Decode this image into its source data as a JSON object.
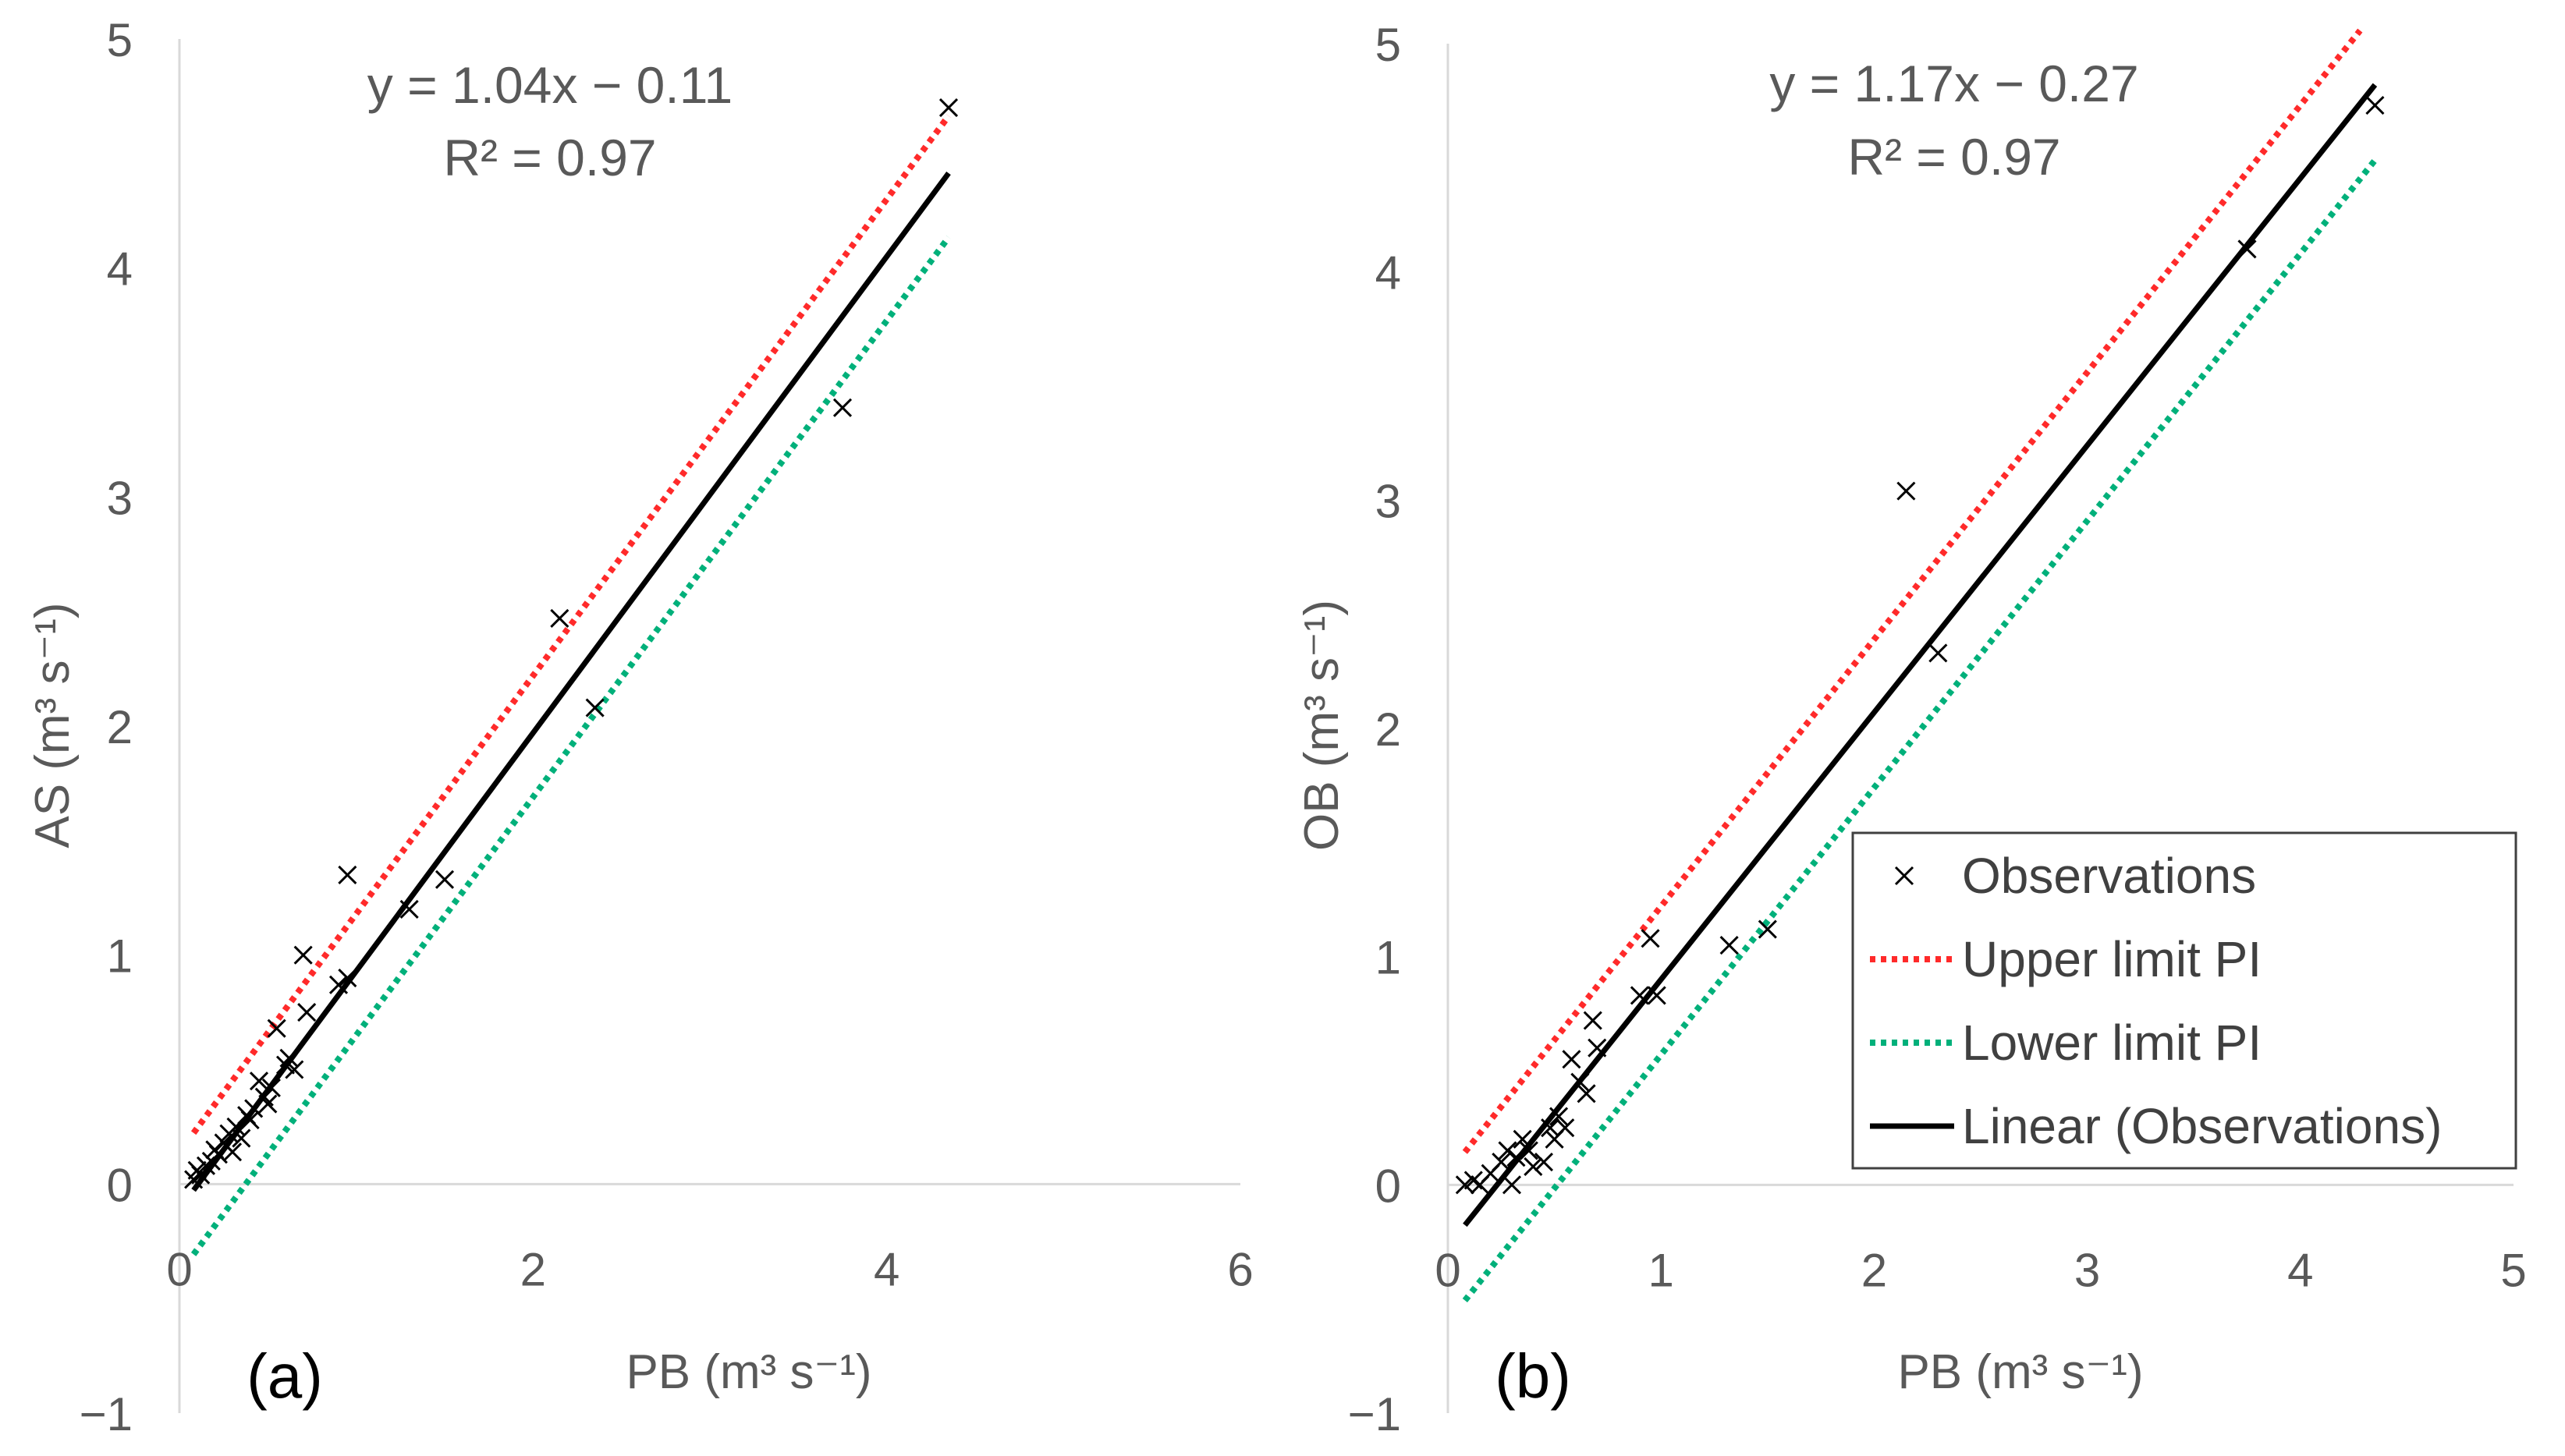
{
  "colors": {
    "observation": "#000000",
    "upper": "#ff2a2a",
    "lower": "#00b07a",
    "fit": "#000000",
    "axis": "#d9d9d9",
    "text": "#595959",
    "panel_label": "#000000"
  },
  "chart_data": [
    {
      "type": "scatter",
      "panel_label": "(a)",
      "xlabel": "PB (m³ s⁻¹)",
      "ylabel": "AS (m³ s⁻¹)",
      "xlim": [
        0,
        6
      ],
      "ylim": [
        -1,
        5
      ],
      "xticks": [
        "0",
        "2",
        "4",
        "6"
      ],
      "xtick_values": [
        0,
        2,
        4,
        6
      ],
      "yticks": [
        "−1",
        "0",
        "1",
        "2",
        "3",
        "4",
        "5"
      ],
      "ytick_values": [
        -1,
        0,
        1,
        2,
        3,
        4,
        5
      ],
      "equation": "y = 1.04x − 0.11",
      "r2": "R² = 0.97",
      "fit": {
        "slope": 1.04,
        "intercept": -0.11,
        "x_range": [
          0.08,
          4.35
        ]
      },
      "upper_pi": {
        "slope": 1.04,
        "intercept": 0.14,
        "x_range": [
          0.08,
          4.35
        ]
      },
      "lower_pi": {
        "slope": 1.04,
        "intercept": -0.39,
        "x_range": [
          0.08,
          4.35
        ]
      },
      "observations": {
        "x": [
          0.08,
          0.1,
          0.12,
          0.15,
          0.18,
          0.2,
          0.22,
          0.25,
          0.28,
          0.3,
          0.32,
          0.35,
          0.38,
          0.4,
          0.42,
          0.45,
          0.48,
          0.5,
          0.52,
          0.55,
          0.6,
          0.62,
          0.65,
          0.7,
          0.72,
          0.9,
          0.95,
          0.95,
          1.3,
          1.5,
          2.15,
          2.35,
          3.75,
          4.35
        ],
        "y": [
          0.02,
          0.06,
          0.04,
          0.08,
          0.1,
          0.15,
          0.13,
          0.18,
          0.22,
          0.14,
          0.25,
          0.2,
          0.3,
          0.28,
          0.33,
          0.45,
          0.38,
          0.35,
          0.42,
          0.68,
          0.52,
          0.55,
          0.5,
          1.0,
          0.75,
          0.87,
          0.9,
          1.35,
          1.2,
          1.33,
          2.47,
          2.08,
          3.39,
          4.7
        ]
      },
      "legend": null
    },
    {
      "type": "scatter",
      "panel_label": "(b)",
      "xlabel": "PB (m³ s⁻¹)",
      "ylabel": "OB (m³ s⁻¹)",
      "xlim": [
        0,
        5
      ],
      "ylim": [
        -1,
        5
      ],
      "xticks": [
        "0",
        "1",
        "2",
        "3",
        "4",
        "5"
      ],
      "xtick_values": [
        0,
        1,
        2,
        3,
        4,
        5
      ],
      "yticks": [
        "−1",
        "0",
        "1",
        "2",
        "3",
        "4",
        "5"
      ],
      "ytick_values": [
        -1,
        0,
        1,
        2,
        3,
        4,
        5
      ],
      "equation": "y = 1.17x − 0.27",
      "r2": "R² = 0.97",
      "fit": {
        "slope": 1.17,
        "intercept": -0.27,
        "x_range": [
          0.08,
          4.35
        ]
      },
      "upper_pi": {
        "slope": 1.17,
        "intercept": 0.05,
        "x_range": [
          0.08,
          4.28
        ]
      },
      "lower_pi": {
        "slope": 1.17,
        "intercept": -0.6,
        "x_range": [
          0.08,
          4.35
        ]
      },
      "observations": {
        "x": [
          0.08,
          0.12,
          0.15,
          0.2,
          0.25,
          0.28,
          0.3,
          0.32,
          0.35,
          0.38,
          0.4,
          0.45,
          0.48,
          0.5,
          0.52,
          0.55,
          0.58,
          0.62,
          0.65,
          0.68,
          0.7,
          0.9,
          0.95,
          0.98,
          1.32,
          1.5,
          2.15,
          2.3,
          3.75,
          4.35
        ],
        "y": [
          0.0,
          0.02,
          0.0,
          0.05,
          0.1,
          0.15,
          0.0,
          0.12,
          0.2,
          0.15,
          0.08,
          0.1,
          0.25,
          0.2,
          0.3,
          0.25,
          0.55,
          0.45,
          0.4,
          0.72,
          0.6,
          0.83,
          1.08,
          0.83,
          1.05,
          1.12,
          3.04,
          2.33,
          4.1,
          4.73
        ]
      },
      "legend": {
        "items": [
          {
            "label": "Observations",
            "kind": "marker"
          },
          {
            "label": "Upper limit PI",
            "kind": "upper"
          },
          {
            "label": "Lower limit PI",
            "kind": "lower"
          },
          {
            "label": "Linear (Observations)",
            "kind": "fit"
          }
        ]
      }
    }
  ]
}
